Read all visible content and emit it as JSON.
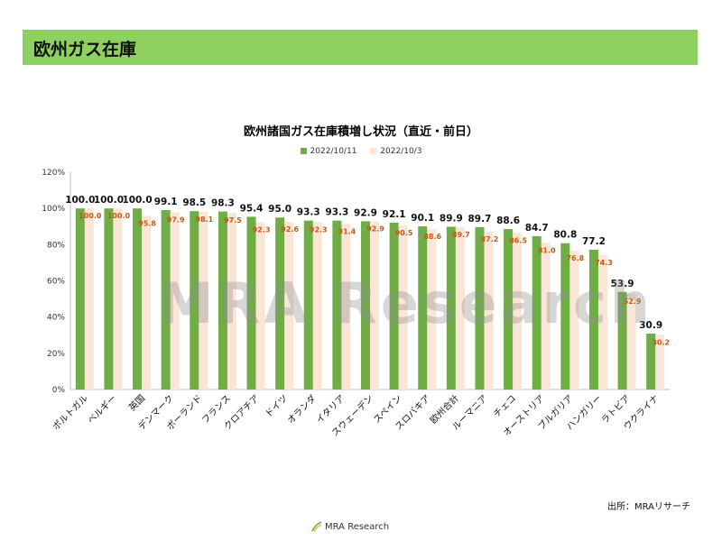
{
  "header": {
    "title": "欧州ガス在庫"
  },
  "chart_data": {
    "type": "bar",
    "title": "欧州諸国ガス在庫積増し状況（直近・前日）",
    "categories": [
      "ポルトガル",
      "ベルギー",
      "英国",
      "デンマーク",
      "ポーランド",
      "フランス",
      "クロアチア",
      "ドイツ",
      "オランダ",
      "イタリア",
      "スウェーデン",
      "スペイン",
      "スロバキア",
      "欧州合計",
      "ルーマニア",
      "チェコ",
      "オーストリア",
      "ブルガリア",
      "ハンガリー",
      "ラトビア",
      "ウクライナ"
    ],
    "series": [
      {
        "name": "2022/10/11",
        "color": "#70ad47",
        "values": [
          100.0,
          100.0,
          100.0,
          99.1,
          98.5,
          98.3,
          95.4,
          95.0,
          93.3,
          93.3,
          92.9,
          92.1,
          90.1,
          89.9,
          89.7,
          88.6,
          84.7,
          80.8,
          77.2,
          53.9,
          30.9
        ],
        "labels": [
          "100.0",
          "100.0",
          "100.0",
          "99.1",
          "98.5",
          "98.3",
          "95.4",
          "95.0",
          "93.3",
          "93.3",
          "92.9",
          "92.1",
          "90.1",
          "89.9",
          "89.7",
          "88.6",
          "84.7",
          "80.8",
          "77.2",
          "53.9",
          "30.9"
        ]
      },
      {
        "name": "2022/10/3",
        "color": "#fbe5d6",
        "values": [
          100.0,
          100.0,
          95.8,
          97.9,
          98.1,
          97.5,
          92.3,
          92.6,
          92.3,
          91.4,
          92.9,
          90.5,
          88.6,
          89.7,
          87.2,
          86.5,
          81.0,
          76.8,
          74.3,
          52.9,
          30.2
        ],
        "labels": [
          "100.0",
          "100.0",
          "95.8",
          "97.9",
          "98.1",
          "97.5",
          "92.3",
          "92.6",
          "92.3",
          "91.4",
          "92.9",
          "90.5",
          "88.6",
          "89.7",
          "87.2",
          "86.5",
          "81.0",
          "76.8",
          "74.3",
          "52.9",
          "30.2"
        ]
      }
    ],
    "ylim": [
      0,
      120
    ],
    "yticks": [
      "0%",
      "20%",
      "40%",
      "60%",
      "80%",
      "100%",
      "120%"
    ],
    "grid": false,
    "legend": "top"
  },
  "watermark": "MRA Research",
  "source": "出所：MRAリサーチ",
  "footer": {
    "logo_text": "MRA Research"
  }
}
